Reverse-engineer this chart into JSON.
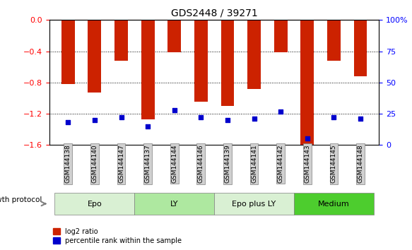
{
  "title": "GDS2448 / 39271",
  "samples": [
    "GSM144138",
    "GSM144140",
    "GSM144147",
    "GSM144137",
    "GSM144144",
    "GSM144146",
    "GSM144139",
    "GSM144141",
    "GSM144142",
    "GSM144143",
    "GSM144145",
    "GSM144148"
  ],
  "log2_ratio": [
    -0.82,
    -0.93,
    -0.52,
    -1.27,
    -0.41,
    -1.05,
    -1.1,
    -0.88,
    -0.41,
    -1.6,
    -0.52,
    -0.72
  ],
  "percentile_rank": [
    18,
    20,
    22,
    15,
    28,
    22,
    20,
    21,
    27,
    5,
    22,
    21
  ],
  "groups": [
    {
      "name": "Epo",
      "start": 0,
      "end": 3,
      "color": "#d9f0d3"
    },
    {
      "name": "LY",
      "start": 3,
      "end": 6,
      "color": "#aee8a0"
    },
    {
      "name": "Epo plus LY",
      "start": 6,
      "end": 9,
      "color": "#d9f0d3"
    },
    {
      "name": "Medium",
      "start": 9,
      "end": 12,
      "color": "#4dcd2e"
    }
  ],
  "ylim_left": [
    -1.6,
    0.0
  ],
  "ylim_right": [
    0,
    100
  ],
  "yticks_left": [
    0.0,
    -0.4,
    -0.8,
    -1.2,
    -1.6
  ],
  "yticks_right": [
    0,
    25,
    50,
    75,
    100
  ],
  "bar_color": "#cc2200",
  "dot_color": "#0000cc",
  "bar_width": 0.5,
  "growth_protocol_label": "growth protocol"
}
